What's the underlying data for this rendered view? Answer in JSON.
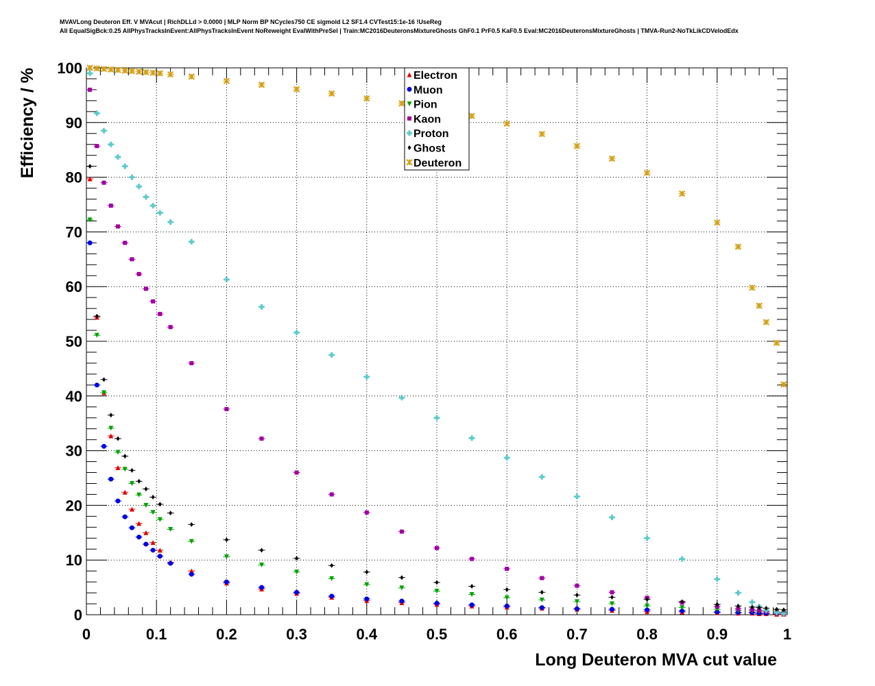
{
  "chart_data": {
    "type": "scatter",
    "title_lines": [
      "MVAVLong Deuteron Eff. V MVAcut | RichDLLd > 0.0000 | MLP Norm BP NCycles750 CE sigmoid L2 SF1.4 CVTest15:1e-16 !UseReg",
      "All EqualSigBck:0.25 AllPhysTracksInEvent:AllPhysTracksInEvent NoReweight EvalWithPreSel | Train:MC2016DeuteronsMixtureGhosts GhF0.1 PrF0.5 KaF0.5 Eval:MC2016DeuteronsMixtureGhosts | TMVA-Run2-NoTkLikCDVelodEdx"
    ],
    "xlabel": "Long Deuteron MVA cut value",
    "ylabel": "Efficiency / %",
    "xlim": [
      0,
      1
    ],
    "ylim": [
      0,
      100
    ],
    "xticks": [
      "0",
      "0.1",
      "0.2",
      "0.3",
      "0.4",
      "0.5",
      "0.6",
      "0.7",
      "0.8",
      "0.9",
      "1"
    ],
    "yticks": [
      "0",
      "10",
      "20",
      "30",
      "40",
      "50",
      "60",
      "70",
      "80",
      "90",
      "100"
    ],
    "grid": true,
    "legend_position": "top-center",
    "x": [
      0.005,
      0.015,
      0.025,
      0.035,
      0.045,
      0.055,
      0.065,
      0.075,
      0.085,
      0.095,
      0.105,
      0.12,
      0.15,
      0.2,
      0.25,
      0.3,
      0.35,
      0.4,
      0.45,
      0.5,
      0.55,
      0.6,
      0.65,
      0.7,
      0.75,
      0.8,
      0.85,
      0.9,
      0.93,
      0.95,
      0.96,
      0.97,
      0.985,
      0.995
    ],
    "series": [
      {
        "name": "Electron",
        "color": "#e00000",
        "marker": "triangle-up",
        "values": [
          79.7,
          54.4,
          40.6,
          32.7,
          26.9,
          22.4,
          19.3,
          16.7,
          15,
          13.2,
          11.8,
          9.6,
          8,
          5.8,
          4.7,
          3.9,
          3.2,
          2.6,
          2.2,
          1.9,
          1.6,
          1.4,
          1.2,
          1,
          0.8,
          0.6,
          0.5,
          0.4,
          0.3,
          0.3,
          0.2,
          0.2,
          0.1,
          0.1
        ]
      },
      {
        "name": "Muon",
        "color": "#0000e0",
        "marker": "circle",
        "values": [
          68,
          42,
          30.8,
          24.8,
          20.8,
          17.9,
          15.9,
          14.2,
          12.9,
          11.8,
          10.7,
          9.4,
          7.4,
          6,
          5,
          4.1,
          3.4,
          2.9,
          2.5,
          2.1,
          1.8,
          1.6,
          1.3,
          1.1,
          1,
          0.9,
          0.7,
          0.5,
          0.4,
          0.4,
          0.3,
          0.3,
          0.3,
          0.3
        ]
      },
      {
        "name": "Pion",
        "color": "#00a000",
        "marker": "triangle-down",
        "values": [
          72.2,
          51.1,
          40.6,
          34.1,
          29.7,
          26.6,
          24,
          21.9,
          20,
          18.7,
          17.4,
          15.6,
          13.4,
          10.6,
          9.1,
          7.8,
          6.6,
          5.5,
          4.9,
          4.3,
          3.7,
          3.1,
          2.7,
          2.4,
          2,
          1.6,
          1.3,
          1,
          0.8,
          0.7,
          0.6,
          0.6,
          0.5,
          0.5
        ]
      },
      {
        "name": "Kaon",
        "color": "#a000a0",
        "marker": "square",
        "values": [
          96,
          85.7,
          79,
          74.8,
          71,
          68,
          65,
          62.3,
          59.6,
          57.3,
          55,
          52.6,
          46,
          37.6,
          32.2,
          26,
          22,
          18.7,
          15.2,
          12.2,
          10.2,
          8.4,
          6.7,
          5.3,
          4.1,
          3.1,
          2.2,
          1.5,
          1.1,
          0.9,
          0.8,
          0.6,
          0.4,
          0.3
        ]
      },
      {
        "name": "Proton",
        "color": "#5ccaca",
        "marker": "cross",
        "values": [
          99,
          91.7,
          88.5,
          86,
          83.7,
          82,
          80,
          78.3,
          76.4,
          74.8,
          73.5,
          71.8,
          68.2,
          61.3,
          56.3,
          51.6,
          47.5,
          43.5,
          39.7,
          36,
          32.3,
          28.7,
          25.2,
          21.6,
          17.8,
          14,
          10.2,
          6.5,
          4,
          2.3,
          1.5,
          0.8,
          0.4,
          0.2
        ]
      },
      {
        "name": "Ghost",
        "color": "#000000",
        "marker": "diamond",
        "values": [
          82,
          54.6,
          43,
          36.5,
          32.2,
          29,
          26.4,
          24.4,
          23,
          21.5,
          20.2,
          18.6,
          16.5,
          13.7,
          11.8,
          10.3,
          9,
          7.8,
          6.8,
          5.9,
          5.2,
          4.6,
          4.1,
          3.6,
          3.2,
          2.8,
          2.4,
          1.9,
          1.6,
          1.4,
          1.3,
          1.2,
          1,
          0.9
        ]
      },
      {
        "name": "Deuteron",
        "color": "#d4a017",
        "marker": "star",
        "values": [
          100,
          99.9,
          99.8,
          99.7,
          99.6,
          99.5,
          99.4,
          99.3,
          99.2,
          99.1,
          99.0,
          98.8,
          98.4,
          97.6,
          96.9,
          96.1,
          95.3,
          94.4,
          93.5,
          92.5,
          91.2,
          89.8,
          87.9,
          85.7,
          83.4,
          80.8,
          77,
          71.7,
          67.3,
          59.8,
          56.5,
          53.5,
          49.7,
          42.1
        ]
      }
    ]
  }
}
